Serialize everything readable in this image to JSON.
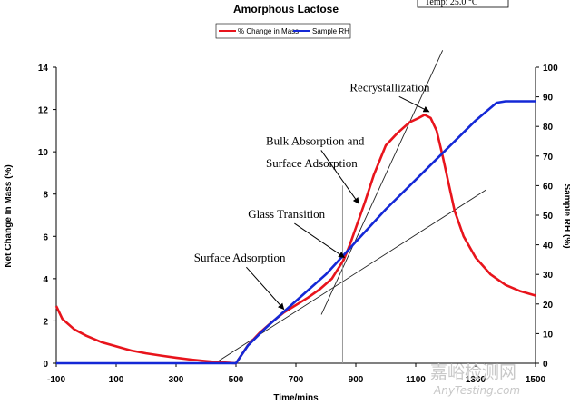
{
  "chart_data": {
    "type": "line",
    "title": "Amorphous Lactose",
    "xlabel": "Time/mins",
    "ylabel_left": "Net Change In Mass (%)",
    "ylabel_right": "Sample RH (%)",
    "xlim": [
      -100,
      1500
    ],
    "ylim_left": [
      0,
      14
    ],
    "ylim_right": [
      0,
      100
    ],
    "x_ticks": [
      "-100",
      "100",
      "300",
      "500",
      "700",
      "900",
      "1100",
      "1300",
      "1500"
    ],
    "y_left_ticks": [
      "0",
      "2",
      "4",
      "6",
      "8",
      "10",
      "12",
      "14"
    ],
    "y_right_ticks": [
      "0",
      "10",
      "20",
      "30",
      "40",
      "50",
      "60",
      "70",
      "80",
      "90",
      "100"
    ],
    "legend": {
      "position": "top-center",
      "items": [
        "% Change in Mass",
        "Sample RH"
      ]
    },
    "temp_label": "Temp: 25.0 °C",
    "series": [
      {
        "name": "% Change in Mass",
        "axis": "left",
        "color": "#e8141c",
        "x": [
          -100,
          -80,
          -40,
          0,
          50,
          100,
          150,
          200,
          250,
          300,
          350,
          400,
          450,
          500,
          540,
          580,
          620,
          660,
          700,
          740,
          780,
          820,
          860,
          880,
          900,
          930,
          960,
          1000,
          1040,
          1080,
          1110,
          1130,
          1150,
          1170,
          1190,
          1210,
          1230,
          1260,
          1300,
          1350,
          1400,
          1450,
          1500
        ],
        "y": [
          2.7,
          2.1,
          1.6,
          1.3,
          1.0,
          0.8,
          0.6,
          0.47,
          0.36,
          0.26,
          0.17,
          0.1,
          0.04,
          0.0,
          0.85,
          1.45,
          1.95,
          2.4,
          2.75,
          3.1,
          3.5,
          4.0,
          4.9,
          5.6,
          6.4,
          7.6,
          8.9,
          10.3,
          10.9,
          11.4,
          11.6,
          11.75,
          11.6,
          11.0,
          9.8,
          8.5,
          7.2,
          6.0,
          5.0,
          4.2,
          3.7,
          3.4,
          3.2
        ]
      },
      {
        "name": "Sample RH",
        "axis": "right",
        "color": "#1428d6",
        "x": [
          -100,
          0,
          100,
          200,
          300,
          400,
          450,
          500,
          540,
          600,
          700,
          800,
          900,
          1000,
          1100,
          1200,
          1300,
          1370,
          1400,
          1450,
          1500
        ],
        "y": [
          0,
          0,
          0,
          0,
          0,
          0,
          0,
          0,
          6,
          12,
          21,
          30,
          41,
          52,
          62,
          72,
          82,
          88,
          88.5,
          88.5,
          88.5
        ]
      }
    ],
    "annotations": [
      {
        "text": "Recrystallization",
        "text_at": [
          880,
          12.87
        ],
        "arrow_to": [
          1145,
          11.9
        ]
      },
      {
        "text": "Bulk Absorption and",
        "text_at": [
          600,
          10.33
        ],
        "arrow_to": [
          910,
          7.55
        ]
      },
      {
        "text": "Surface Adsorption",
        "text_at": [
          600,
          9.27
        ],
        "arrow_to": [
          910,
          7.55
        ]
      },
      {
        "text": "Glass Transition",
        "text_at": [
          540,
          6.87
        ],
        "arrow_to": [
          862,
          5.0
        ]
      },
      {
        "text": "Surface Adsorption",
        "text_at": [
          360,
          4.8
        ],
        "arrow_to": [
          660,
          2.55
        ]
      }
    ],
    "tangent_lines": [
      {
        "from": [
          785,
          2.3
        ],
        "to": [
          1190,
          14.8
        ]
      },
      {
        "from": [
          430,
          0.0
        ],
        "to": [
          1335,
          8.2
        ]
      }
    ],
    "vertical_marker": {
      "x": 856,
      "y_range": [
        0,
        8.4
      ]
    }
  },
  "watermark": {
    "cn": "嘉峪检测网",
    "en": "AnyTesting.com"
  }
}
